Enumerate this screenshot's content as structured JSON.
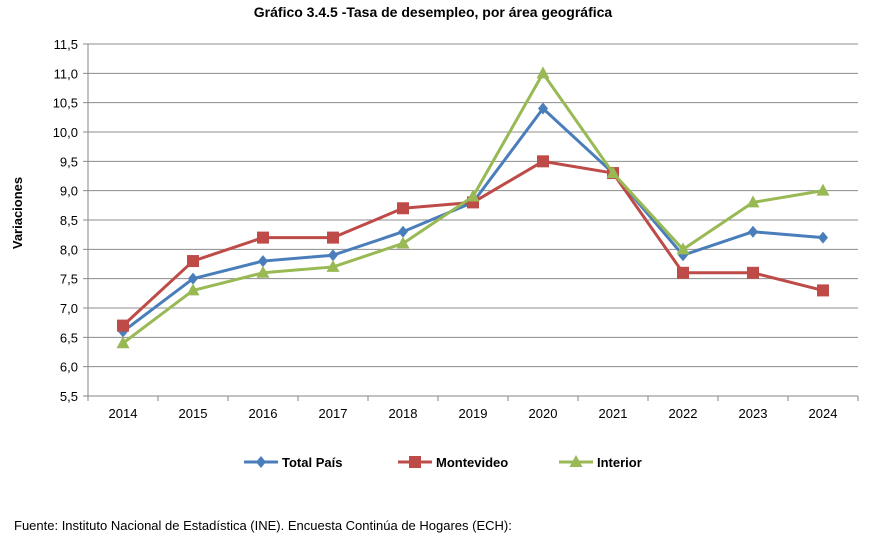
{
  "chart_data": {
    "type": "line",
    "title": "Gráfico 3.4.5 -Tasa de desempleo, por área geográfica",
    "ylabel": "Variaciones",
    "xlabel": "",
    "categories": [
      "2014",
      "2015",
      "2016",
      "2017",
      "2018",
      "2019",
      "2020",
      "2021",
      "2022",
      "2023",
      "2024"
    ],
    "yticks": [
      "5,5",
      "6,0",
      "6,5",
      "7,0",
      "7,5",
      "8,0",
      "8,5",
      "9,0",
      "9,5",
      "10,0",
      "10,5",
      "11,0",
      "11,5"
    ],
    "ylim": [
      5.5,
      11.5
    ],
    "grid": true,
    "legend_position": "bottom",
    "series": [
      {
        "name": "Total País",
        "color": "#4a7ebb",
        "marker": "diamond",
        "values": [
          6.6,
          7.5,
          7.8,
          7.9,
          8.3,
          8.8,
          10.4,
          9.3,
          7.9,
          8.3,
          8.2
        ]
      },
      {
        "name": "Montevideo",
        "color": "#be4b48",
        "marker": "square",
        "values": [
          6.7,
          7.8,
          8.2,
          8.2,
          8.7,
          8.8,
          9.5,
          9.3,
          7.6,
          7.6,
          7.3
        ]
      },
      {
        "name": "Interior",
        "color": "#98b954",
        "marker": "triangle",
        "values": [
          6.4,
          7.3,
          7.6,
          7.7,
          8.1,
          8.9,
          11.0,
          9.3,
          8.0,
          8.8,
          9.0
        ]
      }
    ]
  },
  "footer": {
    "source": "Fuente: Instituto Nacional de Estadística (INE). Encuesta Continúa de Hogares (ECH):"
  }
}
